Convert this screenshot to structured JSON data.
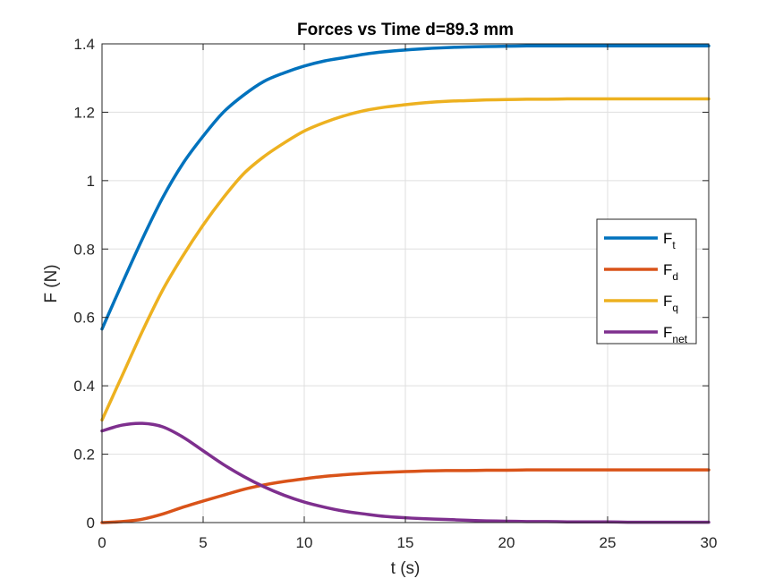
{
  "chart_data": {
    "type": "line",
    "title": "Forces vs Time d=89.3 mm",
    "xlabel": "t (s)",
    "ylabel": "F (N)",
    "xlim": [
      0,
      30
    ],
    "ylim": [
      0,
      1.4
    ],
    "xticks": [
      0,
      5,
      10,
      15,
      20,
      25,
      30
    ],
    "xtick_labels": [
      "0",
      "5",
      "10",
      "15",
      "20",
      "25",
      "30"
    ],
    "yticks": [
      0,
      0.2,
      0.4,
      0.6,
      0.8,
      1.0,
      1.2,
      1.4
    ],
    "ytick_labels": [
      "0",
      "0.2",
      "0.4",
      "0.6",
      "0.8",
      "1",
      "1.2",
      "1.4"
    ],
    "grid": true,
    "legend_position": "right",
    "x": [
      0,
      1,
      2,
      3,
      4,
      5,
      6,
      7,
      8,
      9,
      10,
      11,
      12,
      13,
      14,
      15,
      16,
      17,
      18,
      19,
      20,
      21,
      22,
      23,
      24,
      25,
      26,
      27,
      28,
      29,
      30
    ],
    "series": [
      {
        "name": "F",
        "subscript": "t",
        "color": "#0072bd",
        "values": [
          0.566,
          0.7,
          0.83,
          0.95,
          1.05,
          1.13,
          1.2,
          1.25,
          1.29,
          1.315,
          1.335,
          1.35,
          1.36,
          1.37,
          1.377,
          1.382,
          1.386,
          1.389,
          1.391,
          1.392,
          1.393,
          1.394,
          1.394,
          1.394,
          1.394,
          1.394,
          1.394,
          1.394,
          1.394,
          1.394,
          1.394
        ]
      },
      {
        "name": "F",
        "subscript": "d",
        "color": "#d95319",
        "values": [
          0.0,
          0.003,
          0.01,
          0.025,
          0.045,
          0.063,
          0.08,
          0.097,
          0.11,
          0.12,
          0.128,
          0.135,
          0.14,
          0.144,
          0.147,
          0.149,
          0.151,
          0.152,
          0.152,
          0.153,
          0.153,
          0.154,
          0.154,
          0.154,
          0.154,
          0.154,
          0.154,
          0.154,
          0.154,
          0.154,
          0.154
        ]
      },
      {
        "name": "F",
        "subscript": "q",
        "color": "#edb120",
        "values": [
          0.3,
          0.43,
          0.56,
          0.68,
          0.78,
          0.87,
          0.95,
          1.02,
          1.07,
          1.11,
          1.145,
          1.17,
          1.19,
          1.205,
          1.215,
          1.222,
          1.228,
          1.232,
          1.234,
          1.236,
          1.237,
          1.238,
          1.238,
          1.239,
          1.239,
          1.239,
          1.239,
          1.239,
          1.239,
          1.239,
          1.239
        ]
      },
      {
        "name": "F",
        "subscript": "net",
        "color": "#7e2f8e",
        "values": [
          0.268,
          0.285,
          0.29,
          0.28,
          0.25,
          0.21,
          0.17,
          0.135,
          0.105,
          0.08,
          0.06,
          0.045,
          0.033,
          0.025,
          0.018,
          0.014,
          0.011,
          0.009,
          0.007,
          0.005,
          0.004,
          0.003,
          0.003,
          0.002,
          0.002,
          0.002,
          0.001,
          0.001,
          0.001,
          0.001,
          0.001
        ]
      }
    ]
  }
}
